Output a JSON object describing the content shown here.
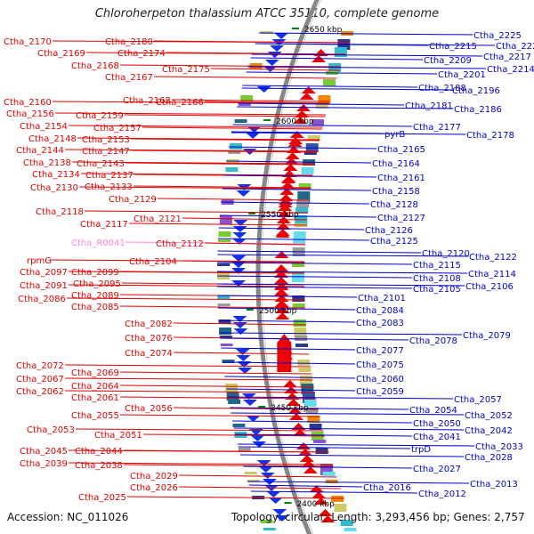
{
  "title": "Chloroherpeton thalassium ATCC 35110, complete genome",
  "footer": {
    "accession": "Accession: NC_011026",
    "stats": "Topology: circular; Length: 3,293,456 bp; Genes: 2,757"
  },
  "colors": {
    "forward_label": "#e00000",
    "reverse_label": "#0000cc",
    "rna_label": "#ff88cc",
    "backbone": "#888888",
    "tick": "#008800"
  },
  "left_labels": [
    {
      "text": "Ctha_2170",
      "rna": false
    },
    {
      "text": "Ctha_2180",
      "rna": false
    },
    {
      "text": "Ctha_2169",
      "rna": false
    },
    {
      "text": "Ctha_2174",
      "rna": false
    },
    {
      "text": "Ctha_2168",
      "rna": false
    },
    {
      "text": "Ctha_2175",
      "rna": false
    },
    {
      "text": "Ctha_2167",
      "rna": false
    },
    {
      "text": "Ctha_2160",
      "rna": false
    },
    {
      "text": "Ctha_2163",
      "rna": false
    },
    {
      "text": "Ctha_2166",
      "rna": false
    },
    {
      "text": "Ctha_2156",
      "rna": false
    },
    {
      "text": "Ctha_2159",
      "rna": false
    },
    {
      "text": "Ctha_2154",
      "rna": false
    },
    {
      "text": "Ctha_2157",
      "rna": false
    },
    {
      "text": "Ctha_2148",
      "rna": false
    },
    {
      "text": "Ctha_2153",
      "rna": false
    },
    {
      "text": "Ctha_2144",
      "rna": false
    },
    {
      "text": "Ctha_2147",
      "rna": false
    },
    {
      "text": "Ctha_2138",
      "rna": false
    },
    {
      "text": "Ctha_2143",
      "rna": false
    },
    {
      "text": "Ctha_2134",
      "rna": false
    },
    {
      "text": "Ctha_2137",
      "rna": false
    },
    {
      "text": "Ctha_2130",
      "rna": false
    },
    {
      "text": "Ctha_2133",
      "rna": false
    },
    {
      "text": "Ctha_2129",
      "rna": false
    },
    {
      "text": "Ctha_2118",
      "rna": false
    },
    {
      "text": "Ctha_2121",
      "rna": false
    },
    {
      "text": "Ctha_2117",
      "rna": false
    },
    {
      "text": "Ctha_R0041",
      "rna": true
    },
    {
      "text": "Ctha_2112",
      "rna": false
    },
    {
      "text": "rpmG",
      "rna": false
    },
    {
      "text": "Ctha_2104",
      "rna": false
    },
    {
      "text": "Ctha_2097",
      "rna": false
    },
    {
      "text": "Ctha_2099",
      "rna": false
    },
    {
      "text": "Ctha_2091",
      "rna": false
    },
    {
      "text": "Ctha_2095",
      "rna": false
    },
    {
      "text": "Ctha_2089",
      "rna": false
    },
    {
      "text": "Ctha_2086",
      "rna": false
    },
    {
      "text": "Ctha_2085",
      "rna": false
    },
    {
      "text": "Ctha_2082",
      "rna": false
    },
    {
      "text": "Ctha_2076",
      "rna": false
    },
    {
      "text": "Ctha_2074",
      "rna": false
    },
    {
      "text": "Ctha_2072",
      "rna": false
    },
    {
      "text": "Ctha_2069",
      "rna": false
    },
    {
      "text": "Ctha_2067",
      "rna": false
    },
    {
      "text": "Ctha_2064",
      "rna": false
    },
    {
      "text": "Ctha_2062",
      "rna": false
    },
    {
      "text": "Ctha_2061",
      "rna": false
    },
    {
      "text": "Ctha_2056",
      "rna": false
    },
    {
      "text": "Ctha_2055",
      "rna": false
    },
    {
      "text": "Ctha_2053",
      "rna": false
    },
    {
      "text": "Ctha_2051",
      "rna": false
    },
    {
      "text": "Ctha_2045",
      "rna": false
    },
    {
      "text": "Ctha_2044",
      "rna": false
    },
    {
      "text": "Ctha_2039",
      "rna": false
    },
    {
      "text": "Ctha_2038",
      "rna": false
    },
    {
      "text": "Ctha_2029",
      "rna": false
    },
    {
      "text": "Ctha_2026",
      "rna": false
    },
    {
      "text": "Ctha_2025",
      "rna": false
    }
  ],
  "right_labels": [
    {
      "text": "Ctha_2225"
    },
    {
      "text": "Ctha_2215"
    },
    {
      "text": "Ctha_2226"
    },
    {
      "text": "Ctha_2209"
    },
    {
      "text": "Ctha_2217"
    },
    {
      "text": "Ctha_2214"
    },
    {
      "text": "Ctha_2201"
    },
    {
      "text": "Ctha_2188"
    },
    {
      "text": "Ctha_2196"
    },
    {
      "text": "Ctha_2181"
    },
    {
      "text": "Ctha_2186"
    },
    {
      "text": "Ctha_2177"
    },
    {
      "text": "pyrB"
    },
    {
      "text": "Ctha_2178"
    },
    {
      "text": "Ctha_2165"
    },
    {
      "text": "Ctha_2164"
    },
    {
      "text": "Ctha_2161"
    },
    {
      "text": "Ctha_2158"
    },
    {
      "text": "Ctha_2128"
    },
    {
      "text": "Ctha_2127"
    },
    {
      "text": "Ctha_2126"
    },
    {
      "text": "Ctha_2125"
    },
    {
      "text": "Ctha_2120"
    },
    {
      "text": "Ctha_2122"
    },
    {
      "text": "Ctha_2115"
    },
    {
      "text": "Ctha_2114"
    },
    {
      "text": "Ctha_2108"
    },
    {
      "text": "Ctha_2105"
    },
    {
      "text": "Ctha_2106"
    },
    {
      "text": "Ctha_2101"
    },
    {
      "text": "Ctha_2084"
    },
    {
      "text": "Ctha_2083"
    },
    {
      "text": "Ctha_2079"
    },
    {
      "text": "Ctha_2078"
    },
    {
      "text": "Ctha_2077"
    },
    {
      "text": "Ctha_2075"
    },
    {
      "text": "Ctha_2060"
    },
    {
      "text": "Ctha_2059"
    },
    {
      "text": "Ctha_2057"
    },
    {
      "text": "Ctha_2054"
    },
    {
      "text": "Ctha_2052"
    },
    {
      "text": "Ctha_2050"
    },
    {
      "text": "Ctha_2042"
    },
    {
      "text": "Ctha_2041"
    },
    {
      "text": "Ctha_2033"
    },
    {
      "text": "trpD"
    },
    {
      "text": "Ctha_2028"
    },
    {
      "text": "Ctha_2027"
    },
    {
      "text": "Ctha_2013"
    },
    {
      "text": "Ctha_2016"
    },
    {
      "text": "Ctha_2012"
    }
  ],
  "ticks": [
    {
      "label": "2650 kbp"
    },
    {
      "label": "2600 kbp"
    },
    {
      "label": "2550 kbp"
    },
    {
      "label": "2500 kbp"
    },
    {
      "label": "2450 kbp"
    },
    {
      "label": "2400 kbp"
    }
  ]
}
